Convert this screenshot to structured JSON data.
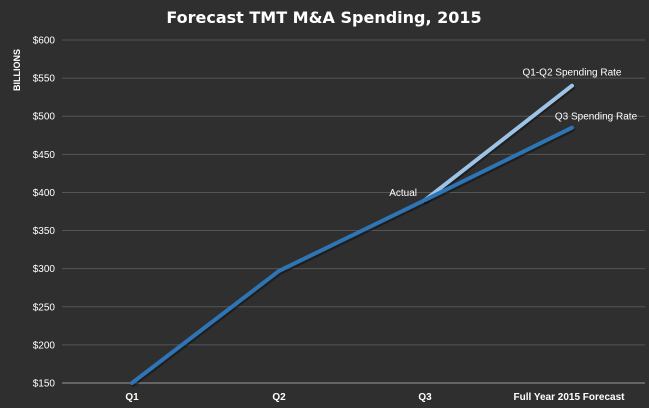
{
  "chart_data": {
    "type": "line",
    "title": "Forecast TMT M&A Spending, 2015",
    "xlabel": "",
    "ylabel": "BILLIONS",
    "categories": [
      "Q1",
      "Q2",
      "Q3",
      "Full Year 2015 Forecast"
    ],
    "ylim": [
      150,
      600
    ],
    "yticks": [
      150,
      200,
      250,
      300,
      350,
      400,
      450,
      500,
      550,
      600
    ],
    "ytick_labels": [
      "$150",
      "$200",
      "$250",
      "$300",
      "$350",
      "$400",
      "$450",
      "$500",
      "$550",
      "$600"
    ],
    "grid": true,
    "series": [
      {
        "name": "Actual",
        "values": [
          150,
          297,
          390,
          null
        ],
        "color": "#2e75b6"
      },
      {
        "name": "Q1-Q2 Spending Rate",
        "values": [
          null,
          null,
          390,
          540
        ],
        "color": "#9dc3e6"
      },
      {
        "name": "Q3 Spending Rate",
        "values": [
          null,
          null,
          390,
          485
        ],
        "color": "#2e75b6"
      }
    ]
  },
  "colors": {
    "background": "#2f2f2f",
    "grid": "#555555",
    "axis": "#9a9a9a",
    "text": "#ffffff"
  }
}
